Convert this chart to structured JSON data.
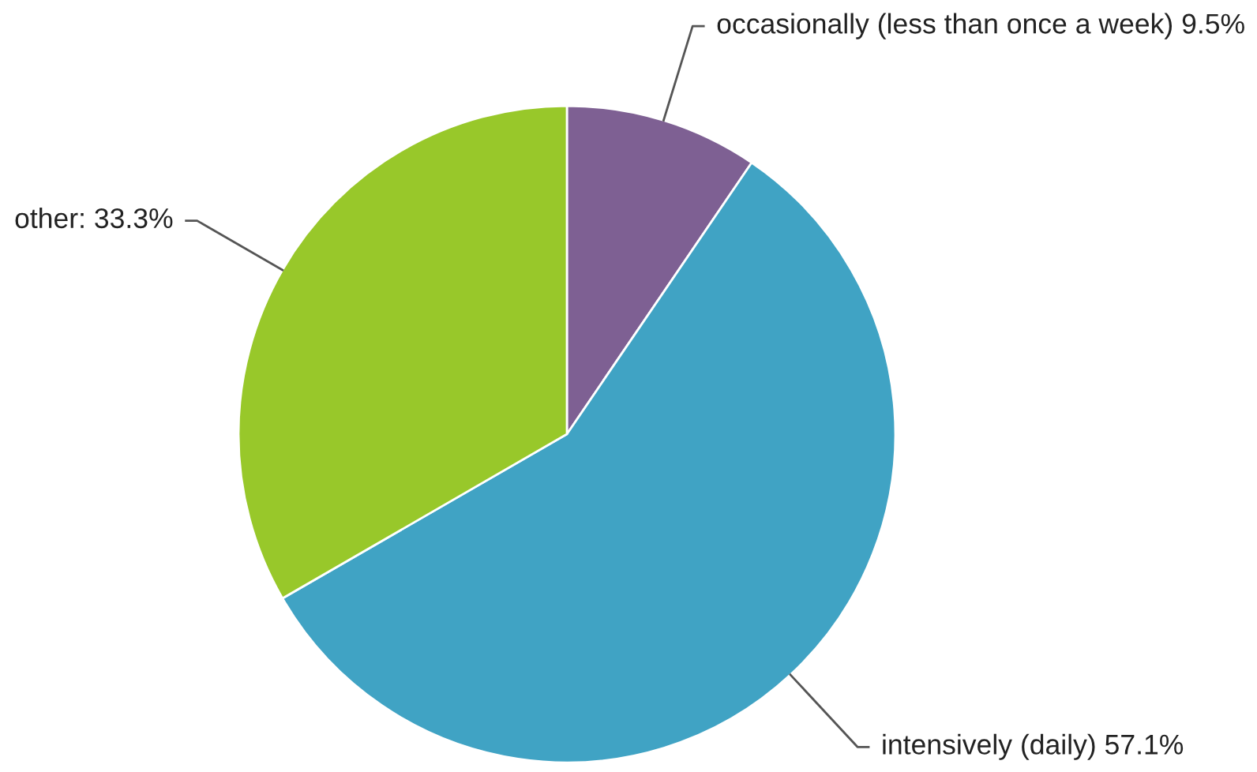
{
  "chart_data": {
    "type": "pie",
    "categories": [
      "occasionally (less than once a week)",
      "intensively (daily)",
      "other"
    ],
    "values": [
      9.5,
      57.1,
      33.3
    ],
    "value_labels": [
      "9.5%",
      "57.1%",
      "33.3%"
    ],
    "colors": [
      "#7e6093",
      "#40a3c4",
      "#98c82a"
    ]
  }
}
